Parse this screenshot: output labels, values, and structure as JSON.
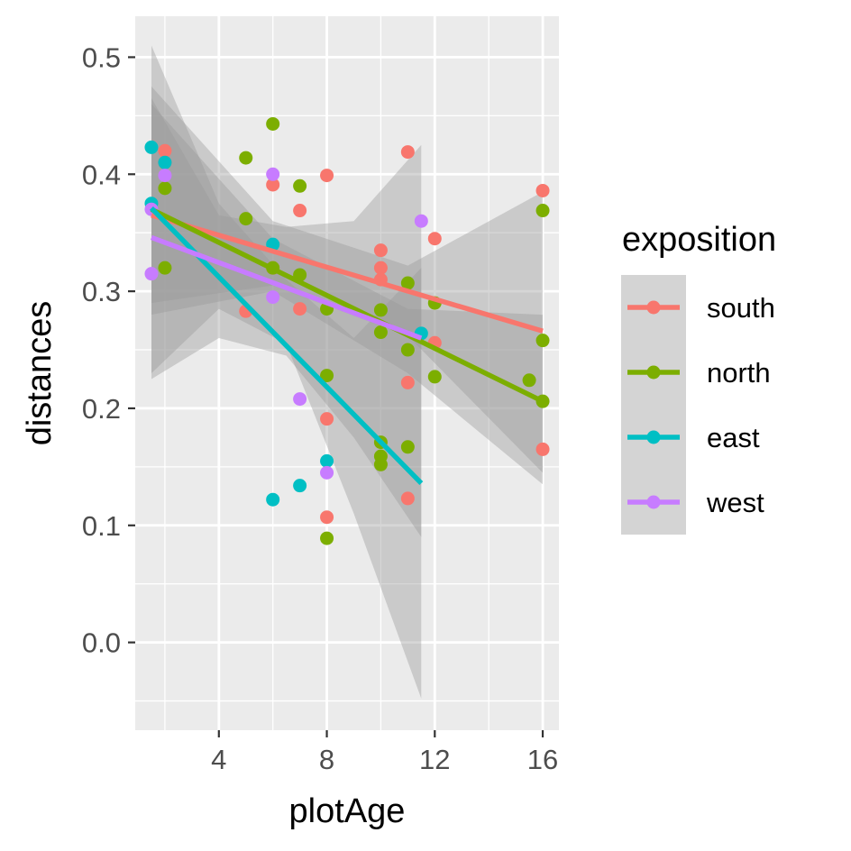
{
  "chart_data": {
    "type": "scatter",
    "xlabel": "plotAge",
    "ylabel": "distances",
    "xlim": [
      0.9,
      16.6
    ],
    "ylim": [
      -0.075,
      0.535
    ],
    "x_ticks": [
      4,
      8,
      12,
      16
    ],
    "x_tick_labels": [
      "4",
      "8",
      "12",
      "16"
    ],
    "y_ticks": [
      0.0,
      0.1,
      0.2,
      0.3,
      0.4,
      0.5
    ],
    "y_tick_labels": [
      "0.0",
      "0.1",
      "0.2",
      "0.3",
      "0.4",
      "0.5"
    ],
    "background": "#ebebeb",
    "grid": true,
    "legend": {
      "title": "exposition",
      "placement": "right",
      "entries": [
        "south",
        "north",
        "east",
        "west"
      ]
    },
    "series": [
      {
        "name": "south",
        "color": "#F8766D",
        "points": [
          [
            2,
            0.42
          ],
          [
            2,
            0.41
          ],
          [
            5,
            0.283
          ],
          [
            6,
            0.391
          ],
          [
            6,
            0.32
          ],
          [
            7,
            0.369
          ],
          [
            7,
            0.285
          ],
          [
            8,
            0.399
          ],
          [
            8,
            0.191
          ],
          [
            8,
            0.107
          ],
          [
            10,
            0.335
          ],
          [
            10,
            0.32
          ],
          [
            10,
            0.31
          ],
          [
            11,
            0.419
          ],
          [
            11,
            0.222
          ],
          [
            11,
            0.123
          ],
          [
            12,
            0.345
          ],
          [
            12,
            0.256
          ],
          [
            16,
            0.386
          ],
          [
            16,
            0.165
          ]
        ],
        "fit": [
          [
            1.5,
            0.365
          ],
          [
            16,
            0.266
          ]
        ],
        "band": {
          "x": [
            1.5,
            6,
            11,
            16
          ],
          "lower": [
            0.29,
            0.305,
            0.262,
            0.145
          ],
          "upper": [
            0.475,
            0.36,
            0.322,
            0.385
          ]
        }
      },
      {
        "name": "north",
        "color": "#7CAE00",
        "points": [
          [
            2,
            0.388
          ],
          [
            2,
            0.32
          ],
          [
            5,
            0.414
          ],
          [
            5,
            0.362
          ],
          [
            6,
            0.443
          ],
          [
            6,
            0.32
          ],
          [
            7,
            0.39
          ],
          [
            7,
            0.314
          ],
          [
            8,
            0.285
          ],
          [
            8,
            0.228
          ],
          [
            8,
            0.089
          ],
          [
            10,
            0.284
          ],
          [
            10,
            0.265
          ],
          [
            10,
            0.171
          ],
          [
            10,
            0.159
          ],
          [
            10,
            0.152
          ],
          [
            11,
            0.307
          ],
          [
            11,
            0.25
          ],
          [
            11,
            0.167
          ],
          [
            12,
            0.29
          ],
          [
            12,
            0.227
          ],
          [
            15.5,
            0.224
          ],
          [
            16,
            0.369
          ],
          [
            16,
            0.258
          ],
          [
            16,
            0.206
          ]
        ],
        "fit": [
          [
            1.5,
            0.37
          ],
          [
            16,
            0.206
          ]
        ],
        "band": {
          "x": [
            1.5,
            6,
            11,
            16
          ],
          "lower": [
            0.28,
            0.3,
            0.23,
            0.135
          ],
          "upper": [
            0.46,
            0.345,
            0.285,
            0.28
          ]
        }
      },
      {
        "name": "east",
        "color": "#00BFC4",
        "points": [
          [
            1.5,
            0.423
          ],
          [
            1.5,
            0.375
          ],
          [
            2,
            0.41
          ],
          [
            6,
            0.34
          ],
          [
            6,
            0.122
          ],
          [
            7,
            0.134
          ],
          [
            8,
            0.155
          ],
          [
            11.5,
            0.264
          ]
        ],
        "fit": [
          [
            1.5,
            0.371
          ],
          [
            11.5,
            0.136
          ]
        ],
        "band": {
          "x": [
            1.5,
            4,
            6.5,
            9,
            11.5
          ],
          "lower": [
            0.23,
            0.285,
            0.255,
            0.11,
            -0.048
          ],
          "upper": [
            0.51,
            0.375,
            0.31,
            0.26,
            0.32
          ]
        }
      },
      {
        "name": "west",
        "color": "#C77CFF",
        "points": [
          [
            1.5,
            0.37
          ],
          [
            1.5,
            0.315
          ],
          [
            2,
            0.399
          ],
          [
            6,
            0.4
          ],
          [
            6,
            0.295
          ],
          [
            7,
            0.208
          ],
          [
            8,
            0.145
          ],
          [
            11.5,
            0.36
          ]
        ],
        "fit": [
          [
            1.5,
            0.346
          ],
          [
            11.5,
            0.26
          ]
        ],
        "band": {
          "x": [
            1.5,
            4,
            6.5,
            9,
            11.5
          ],
          "lower": [
            0.225,
            0.26,
            0.245,
            0.175,
            0.09
          ],
          "upper": [
            0.465,
            0.365,
            0.355,
            0.36,
            0.425
          ]
        }
      }
    ]
  }
}
